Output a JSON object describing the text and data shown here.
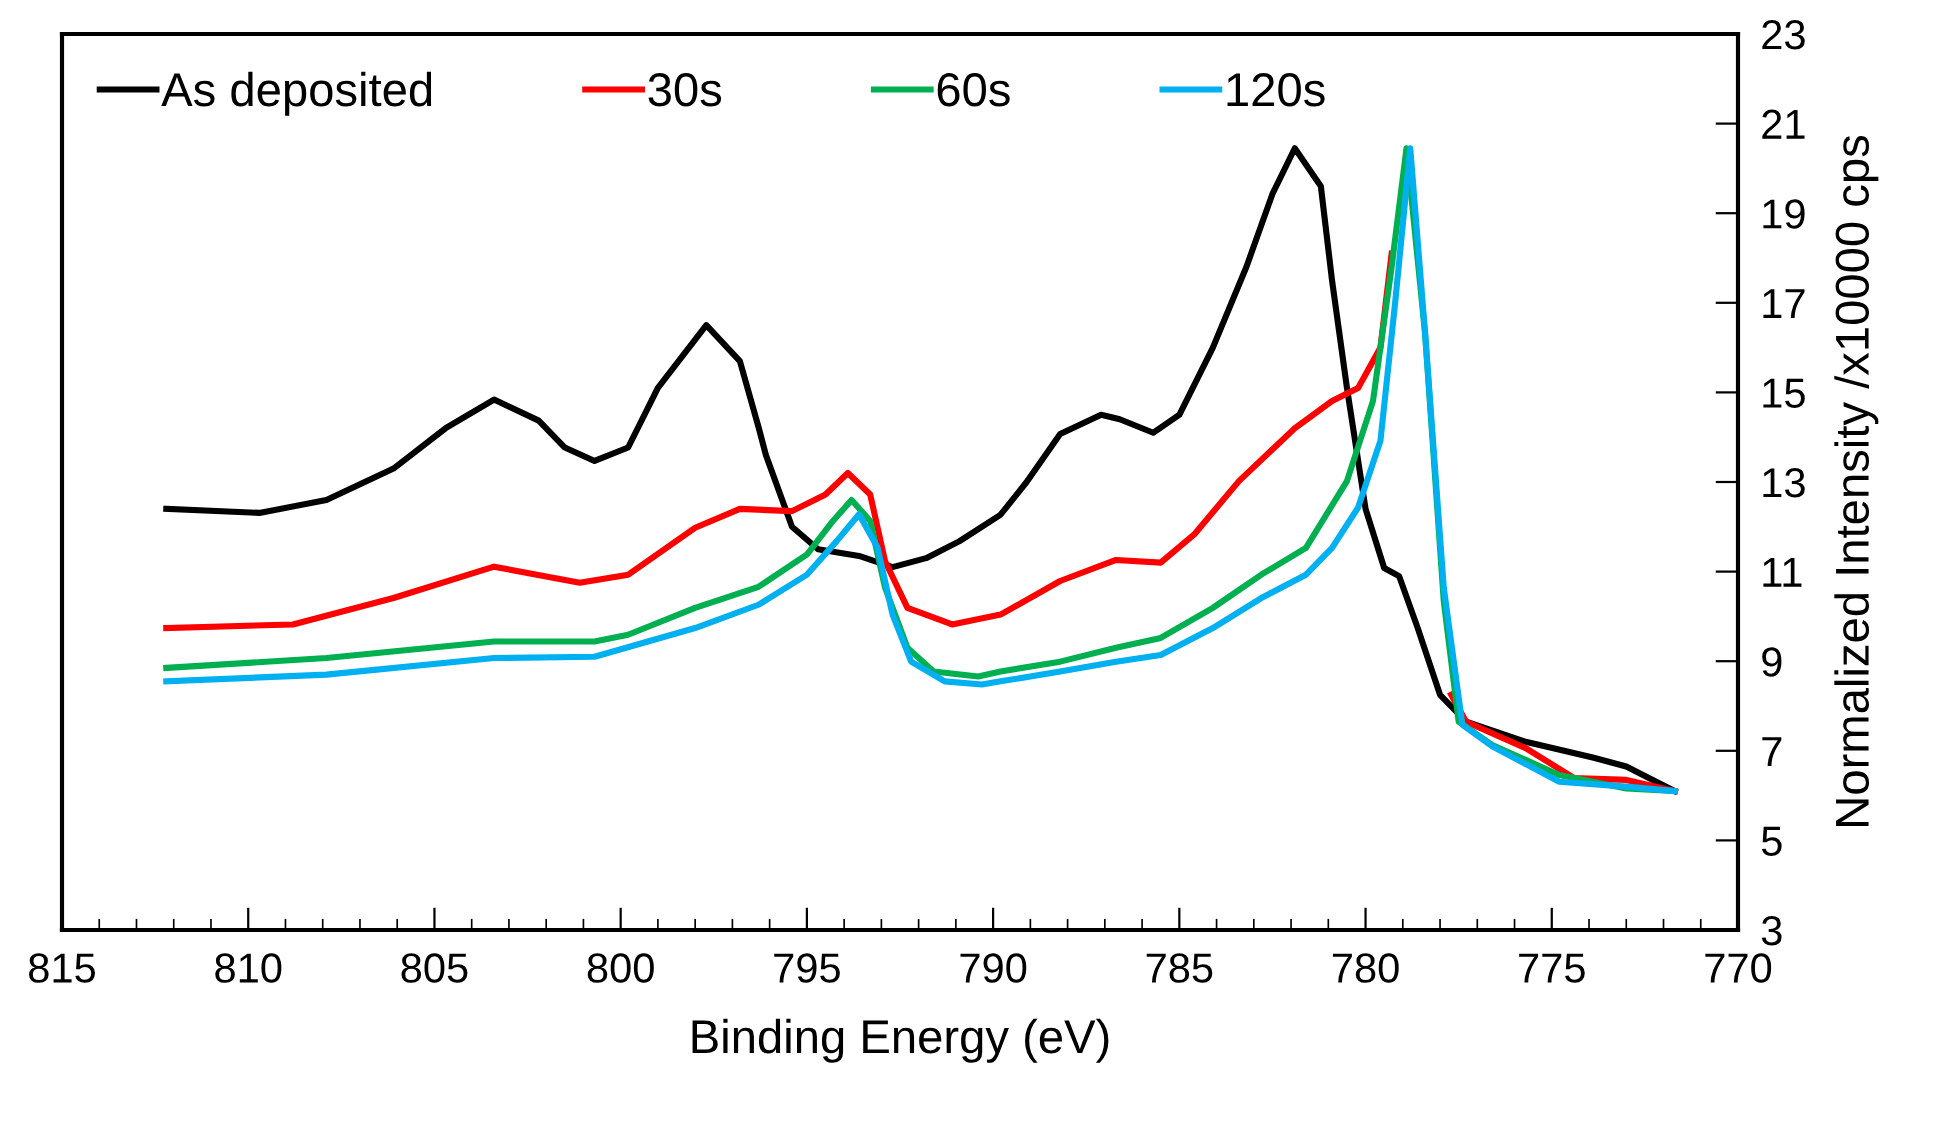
{
  "chart_data": {
    "type": "line",
    "xlabel": "Binding Energy (eV)",
    "ylabel": "Normalized Intensity /x10000 cps",
    "xlim": [
      815,
      770
    ],
    "xticks": [
      815,
      810,
      805,
      800,
      795,
      790,
      785,
      780,
      775,
      770
    ],
    "ylim": [
      3,
      23
    ],
    "yticks": [
      3,
      5,
      7,
      9,
      11,
      13,
      15,
      17,
      19,
      21,
      23
    ],
    "grid": false,
    "legend": "top",
    "marker": "none",
    "line_style": "solid",
    "series": [
      {
        "name": "As deposited",
        "color": "#000000",
        "x": [
          812.2,
          809.7,
          807.9,
          806.1,
          804.7,
          803.4,
          802.2,
          801.5,
          800.7,
          799.8,
          799.0,
          797.7,
          796.8,
          796.3,
          796.1,
          795.4,
          794.7,
          793.6,
          792.7,
          791.8,
          790.9,
          789.8,
          789.1,
          788.2,
          787.1,
          786.6,
          785.7,
          785.0,
          784.1,
          783.2,
          782.5,
          781.9,
          781.2,
          780.9,
          780.5,
          780.0,
          779.5,
          779.1,
          778.6,
          778.0,
          777.3,
          775.7,
          773.9,
          773.0,
          771.7
        ],
        "values": [
          12.4,
          12.31,
          12.6,
          13.3,
          14.2,
          14.84,
          14.37,
          13.77,
          13.47,
          13.77,
          15.1,
          16.5,
          15.7,
          14.23,
          13.6,
          12.0,
          11.5,
          11.35,
          11.1,
          11.3,
          11.68,
          12.27,
          13.0,
          14.07,
          14.5,
          14.4,
          14.1,
          14.5,
          16.0,
          17.8,
          19.43,
          20.45,
          19.6,
          17.5,
          15.1,
          12.4,
          11.08,
          10.9,
          9.74,
          8.25,
          7.65,
          7.2,
          6.85,
          6.65,
          6.1
        ]
      },
      {
        "name": "30s",
        "color": "#ff0000",
        "x": [
          812.2,
          808.8,
          806.1,
          803.4,
          801.1,
          799.8,
          798.0,
          796.8,
          795.4,
          794.5,
          793.9,
          793.3,
          792.9,
          792.3,
          791.1,
          789.8,
          788.2,
          786.7,
          785.5,
          784.6,
          783.4,
          781.9,
          780.9,
          780.2,
          779.6,
          779.3,
          778.9,
          778.4,
          778.0,
          777.7,
          777.3,
          775.7,
          774.4,
          773.0,
          771.7
        ],
        "values": [
          9.74,
          9.82,
          10.41,
          11.11,
          10.75,
          10.93,
          11.98,
          12.4,
          12.35,
          12.72,
          13.2,
          12.72,
          11.23,
          10.19,
          9.82,
          10.04,
          10.79,
          11.26,
          11.2,
          11.83,
          13.02,
          14.2,
          14.81,
          15.1,
          16.0,
          18.1,
          null,
          null,
          null,
          8.25,
          7.65,
          7.06,
          6.39,
          6.35,
          6.1
        ]
      },
      {
        "name": "60s",
        "color": "#00b050",
        "x": [
          812.2,
          807.9,
          803.4,
          800.7,
          799.8,
          798.0,
          796.3,
          795.0,
          794.3,
          793.8,
          793.3,
          792.9,
          792.3,
          791.6,
          790.4,
          789.8,
          788.2,
          786.7,
          785.5,
          784.1,
          782.8,
          781.6,
          780.5,
          779.8,
          779.3,
          778.9,
          778.4,
          777.9,
          777.5,
          776.6,
          774.8,
          773.0,
          771.7
        ],
        "values": [
          8.85,
          9.07,
          9.44,
          9.44,
          9.59,
          10.19,
          10.66,
          11.38,
          12.13,
          12.6,
          12.13,
          10.64,
          9.3,
          8.77,
          8.66,
          8.77,
          8.99,
          9.3,
          9.52,
          10.19,
          10.93,
          11.53,
          13.02,
          14.81,
          17.8,
          20.45,
          16.3,
          10.34,
          7.65,
          7.13,
          6.46,
          6.16,
          6.1
        ]
      },
      {
        "name": "120s",
        "color": "#00b0f0",
        "x": [
          812.2,
          807.9,
          803.4,
          800.7,
          798.0,
          796.3,
          795.0,
          794.2,
          793.6,
          793.1,
          792.7,
          792.2,
          791.3,
          790.3,
          789.8,
          788.2,
          786.7,
          785.5,
          784.1,
          782.8,
          781.6,
          780.9,
          780.2,
          779.6,
          779.2,
          778.8,
          778.4,
          777.9,
          777.4,
          776.6,
          774.8,
          773.0,
          771.7
        ],
        "values": [
          8.55,
          8.7,
          9.07,
          9.1,
          9.74,
          10.26,
          10.93,
          11.68,
          12.28,
          11.53,
          10.04,
          8.99,
          8.55,
          8.48,
          8.55,
          8.77,
          8.99,
          9.14,
          9.74,
          10.41,
          10.93,
          11.53,
          12.43,
          13.92,
          17.05,
          20.45,
          16.3,
          10.64,
          7.58,
          7.1,
          6.31,
          6.2,
          6.1
        ]
      }
    ]
  }
}
